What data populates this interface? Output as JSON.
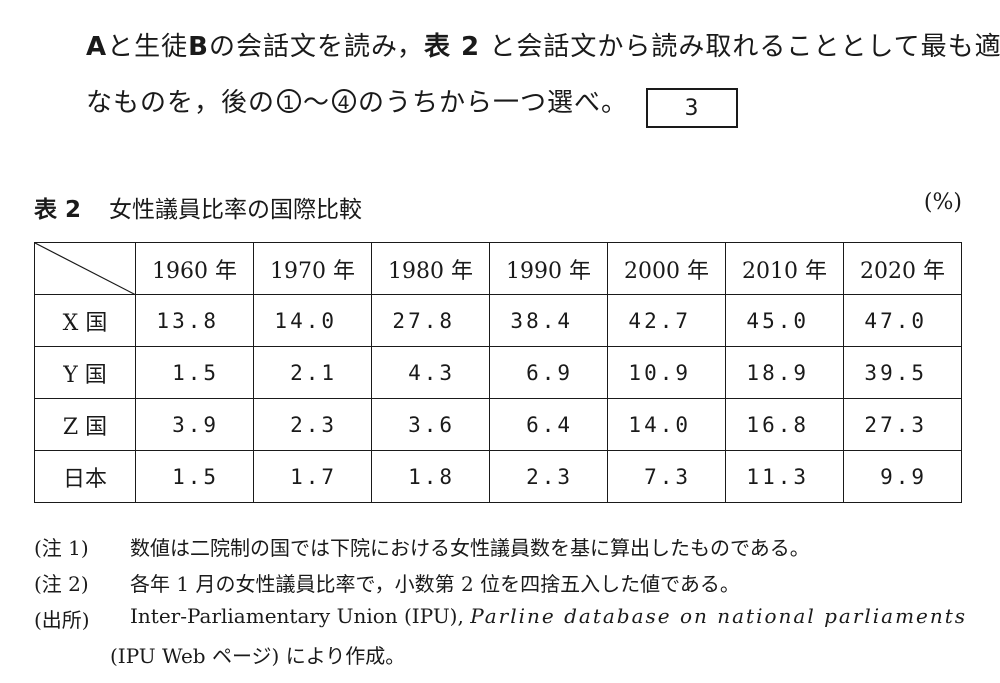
{
  "question": {
    "line1": [
      "A",
      "と生徒",
      "B",
      "の会話文を読み，",
      "表 2",
      " と会話文から読み取れることとして最も適当"
    ],
    "line2_before": "なものを，後の",
    "choice_first": "1",
    "tilde": "〜",
    "choice_last": "4",
    "line2_after": "のうちから一つ選べ。",
    "answer_box": "3"
  },
  "table": {
    "label": "表 2",
    "title": "女性議員比率の国際比較",
    "unit": "(%)",
    "columns": [
      "1960 年",
      "1970 年",
      "1980 年",
      "1990 年",
      "2000 年",
      "2010 年",
      "2020 年"
    ],
    "rows": [
      {
        "name": "X 国",
        "values": [
          "13.8",
          "14.0",
          "27.8",
          "38.4",
          "42.7",
          "45.0",
          "47.0"
        ]
      },
      {
        "name": "Y 国",
        "values": [
          "1.5",
          "2.1",
          "4.3",
          "6.9",
          "10.9",
          "18.9",
          "39.5"
        ]
      },
      {
        "name": "Z 国",
        "values": [
          "3.9",
          "2.3",
          "3.6",
          "6.4",
          "14.0",
          "16.8",
          "27.3"
        ]
      },
      {
        "name": "日本",
        "values": [
          "1.5",
          "1.7",
          "1.8",
          "2.3",
          "7.3",
          "11.3",
          "9.9"
        ]
      }
    ]
  },
  "notes": [
    {
      "key": "(注 1)",
      "text": "数値は二院制の国では下院における女性議員数を基に算出したものである。"
    },
    {
      "key": "(注 2)",
      "text": "各年 1 月の女性議員比率で，小数第 2 位を四捨五入した値である。"
    }
  ],
  "source": {
    "key": "(出所)",
    "org": "Inter-Parliamentary Union (IPU),",
    "db": "Parline database on national parliaments",
    "line2": "(IPU Web ページ) により作成。"
  }
}
